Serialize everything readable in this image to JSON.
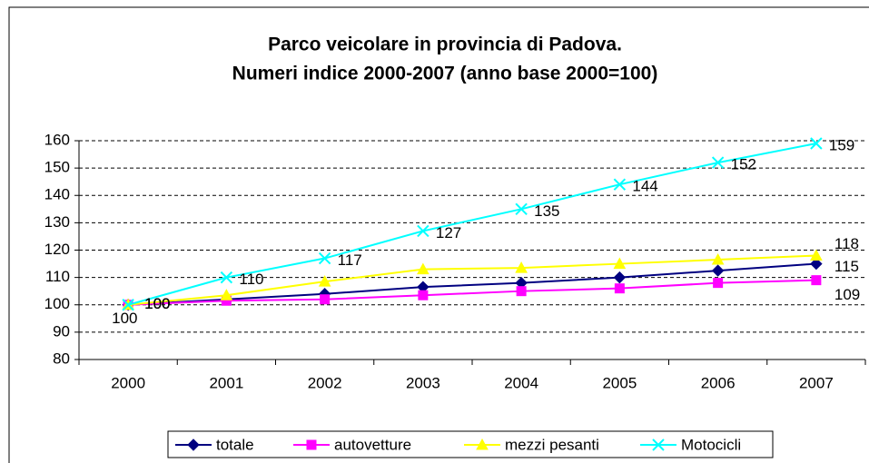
{
  "chart_data": {
    "type": "line",
    "title": [
      "Parco veicolare in provincia di Padova.",
      "Numeri indice 2000-2007 (anno base 2000=100)"
    ],
    "categories": [
      "2000",
      "2001",
      "2002",
      "2003",
      "2004",
      "2005",
      "2006",
      "2007"
    ],
    "series": [
      {
        "name": "totale",
        "color": "#000080",
        "marker": "diamond",
        "values": [
          100,
          102,
          104,
          106.5,
          108,
          110,
          112.5,
          115
        ]
      },
      {
        "name": "autovetture",
        "color": "#ff00ff",
        "marker": "square",
        "values": [
          100,
          101.5,
          102,
          103.5,
          105,
          106,
          108,
          109
        ]
      },
      {
        "name": "mezzi pesanti",
        "color": "#ffff00",
        "marker": "triangle",
        "values": [
          100,
          103.5,
          108.5,
          113,
          113.5,
          115,
          116.5,
          118
        ]
      },
      {
        "name": "Motocicli",
        "color": "#00ffff",
        "marker": "x",
        "values": [
          100,
          110,
          117,
          127,
          135,
          144,
          152,
          159
        ]
      }
    ],
    "ylim": [
      80,
      160
    ],
    "yticks": [
      80,
      90,
      100,
      110,
      120,
      130,
      140,
      150,
      160
    ],
    "grid": true,
    "legend": "bottom"
  }
}
